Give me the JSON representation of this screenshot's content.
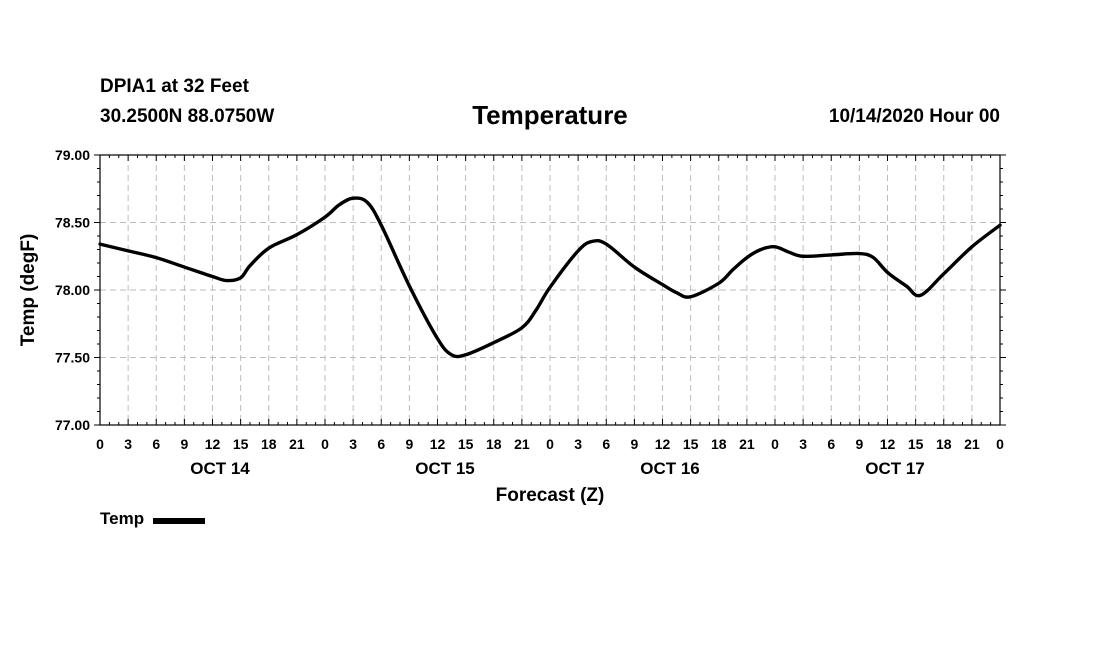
{
  "header": {
    "station_name": "DPIA1 at 32 Feet",
    "station_coords": "30.2500N 88.0750W",
    "issue_time": "10/14/2020 Hour 00"
  },
  "chart_data": {
    "type": "line",
    "title": "Temperature",
    "xlabel": "Forecast (Z)",
    "ylabel": "Temp (degF)",
    "ylim": [
      77.0,
      79.0
    ],
    "yticks": [
      "79.00",
      "78.50",
      "78.00",
      "77.50",
      "77.00"
    ],
    "xlim_hours": [
      0,
      96
    ],
    "xtick_labels": [
      "0",
      "3",
      "6",
      "9",
      "12",
      "15",
      "18",
      "21",
      "0",
      "3",
      "6",
      "9",
      "12",
      "15",
      "18",
      "21",
      "0",
      "3",
      "6",
      "9",
      "12",
      "15",
      "18",
      "21",
      "0",
      "3",
      "6",
      "9",
      "12",
      "15",
      "18",
      "21",
      "0"
    ],
    "date_labels": [
      {
        "hour": 12,
        "label": "OCT 14"
      },
      {
        "hour": 36,
        "label": "OCT 15"
      },
      {
        "hour": 60,
        "label": "OCT 16"
      },
      {
        "hour": 84,
        "label": "OCT 17"
      }
    ],
    "grid": true,
    "legend_position": "bottom-left",
    "series": [
      {
        "name": "Temp",
        "color": "#000000",
        "x": [
          0,
          3,
          6,
          9,
          12,
          13.5,
          15,
          16,
          18,
          21,
          24,
          25.5,
          27,
          28.5,
          30,
          33,
          36,
          37.5,
          39,
          42,
          45,
          46.5,
          48,
          51,
          52.5,
          54,
          57,
          60,
          61.5,
          63,
          66,
          67.5,
          69,
          70.5,
          72,
          73.5,
          75,
          78,
          81,
          82.5,
          84,
          86,
          87.5,
          90,
          93,
          96
        ],
        "y": [
          78.34,
          78.29,
          78.24,
          78.17,
          78.1,
          78.07,
          78.09,
          78.18,
          78.31,
          78.41,
          78.54,
          78.63,
          78.68,
          78.65,
          78.48,
          78.03,
          77.64,
          77.52,
          77.52,
          77.61,
          77.72,
          77.85,
          78.02,
          78.29,
          78.36,
          78.34,
          78.17,
          78.04,
          77.98,
          77.95,
          78.05,
          78.15,
          78.24,
          78.3,
          78.32,
          78.28,
          78.25,
          78.26,
          78.27,
          78.24,
          78.13,
          78.03,
          77.96,
          78.12,
          78.32,
          78.48
        ]
      }
    ]
  },
  "legend": {
    "label": "Temp",
    "swatch_color": "#000000"
  }
}
